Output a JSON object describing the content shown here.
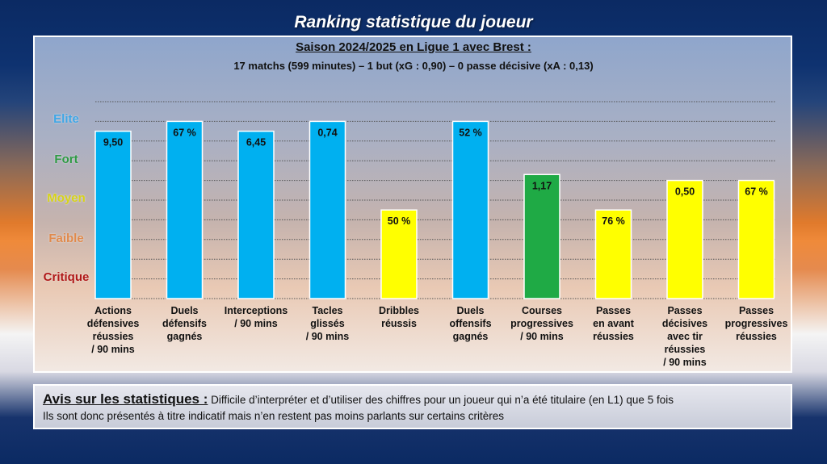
{
  "title": "Ranking statistique du joueur",
  "subtitle": "Saison 2024/2025 en Ligue 1 avec Brest :",
  "subtitle2": "17 matchs (599 minutes) – 1 but (xG : 0,90) – 0 passe décisive (xA : 0,13)",
  "tiers": [
    {
      "label": "Elite",
      "color": "#3ea6e6"
    },
    {
      "label": "Fort",
      "color": "#2e9a44"
    },
    {
      "label": "Moyen",
      "color": "#d6d21a"
    },
    {
      "label": "Faible",
      "color": "#e08a4c"
    },
    {
      "label": "Critique",
      "color": "#b01818"
    }
  ],
  "colors": {
    "blue": "#00b0f0",
    "green": "#1faa45",
    "yellow": "#ffff00"
  },
  "chart_data": {
    "type": "bar",
    "ylabel_levels": [
      "Critique",
      "Faible",
      "Moyen",
      "Fort",
      "Elite"
    ],
    "ylim": [
      0,
      10
    ],
    "grid": true,
    "categories": [
      "Actions\ndéfensives\nréussies\n/ 90 mins",
      "Duels\ndéfensifs\ngagnés",
      "Interceptions\n/ 90 mins",
      "Tacles\nglissés\n/ 90 mins",
      "Dribbles\nréussis",
      "Duels\noffensifs\ngagnés",
      "Courses\nprogressives\n/ 90 mins",
      "Passes\nen avant\nréussies",
      "Passes décisives\navec tir\nréussies\n/ 90 mins",
      "Passes\nprogressives\nréussies"
    ],
    "values": [
      8.5,
      9.0,
      8.5,
      9.0,
      4.5,
      9.0,
      6.3,
      4.5,
      6.0,
      6.0
    ],
    "labels": [
      "9,50",
      "67 %",
      "6,45",
      "0,74",
      "50 %",
      "52 %",
      "1,17",
      "76 %",
      "0,50",
      "67 %"
    ],
    "bar_colors": [
      "blue",
      "blue",
      "blue",
      "blue",
      "yellow",
      "blue",
      "green",
      "yellow",
      "yellow",
      "yellow"
    ]
  },
  "notes": {
    "heading": "Avis sur les statistiques :",
    "line1": " Difficile d’interpréter et d’utiliser des chiffres pour un joueur qui n’a été titulaire (en L1) que 5 fois",
    "line2": "Ils sont donc présentés à titre indicatif mais n’en restent pas moins parlants sur certains critères"
  }
}
